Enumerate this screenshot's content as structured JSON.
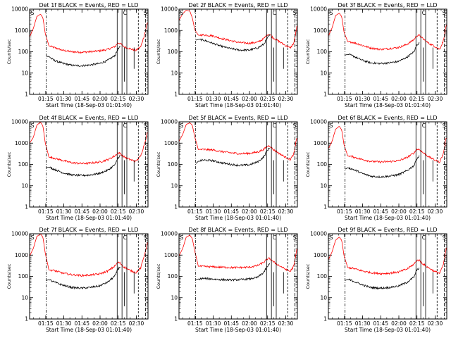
{
  "chart_data": {
    "type": "line",
    "ylabel": "Counts/sec",
    "xlabel": "Start Time (18-Sep-03 01:01:40)",
    "yscale": "log",
    "ylim": [
      1,
      10000
    ],
    "y_ticks": [
      "1",
      "10",
      "100",
      "1000",
      "10000"
    ],
    "x_ticks": [
      "01:15",
      "01:30",
      "01:45",
      "02:00",
      "02:15",
      "02:30"
    ],
    "x_tick_values_min": [
      13.33,
      28.33,
      43.33,
      58.33,
      73.33,
      88.33
    ],
    "xlim_min": [
      0,
      98
    ],
    "x_units": "minutes after 01:01:40",
    "legend_text": "BLACK = Events, RED = LLD",
    "series_colors": {
      "Events": "#000000",
      "LLD": "#ff0000"
    },
    "corner_markers": [
      "S",
      "C",
      "S"
    ],
    "panels": [
      {
        "title": "Det 1f BLACK = Events, RED = LLD",
        "lld": {
          "x": [
            0,
            3,
            6,
            9,
            11,
            13,
            16,
            20,
            28,
            35,
            43,
            50,
            58,
            65,
            71,
            73,
            75,
            78,
            83,
            88,
            92,
            95,
            98
          ],
          "y": [
            500,
            1200,
            4500,
            5800,
            4000,
            700,
            190,
            160,
            115,
            100,
            95,
            100,
            110,
            130,
            180,
            260,
            250,
            170,
            140,
            115,
            170,
            600,
            3000
          ]
        },
        "events": {
          "x": [
            14,
            16,
            20,
            28,
            35,
            43,
            50,
            58,
            65,
            71,
            73,
            75
          ],
          "y": [
            60,
            60,
            40,
            28,
            23,
            22,
            24,
            28,
            40,
            70,
            130,
            170
          ]
        }
      },
      {
        "title": "Det 2f BLACK = Events, RED = LLD",
        "lld": {
          "x": [
            0,
            3,
            6,
            9,
            11,
            13,
            16,
            20,
            28,
            35,
            43,
            50,
            58,
            65,
            70,
            73,
            75,
            78,
            83,
            88,
            92,
            95,
            98
          ],
          "y": [
            3000,
            6000,
            9000,
            8000,
            4000,
            1100,
            600,
            620,
            560,
            420,
            330,
            270,
            250,
            280,
            400,
            650,
            650,
            450,
            300,
            200,
            150,
            250,
            2000
          ]
        },
        "events": {
          "x": [
            14,
            16,
            20,
            28,
            35,
            43,
            50,
            58,
            65,
            70,
            73,
            75
          ],
          "y": [
            350,
            380,
            360,
            250,
            180,
            140,
            120,
            120,
            150,
            220,
            420,
            600
          ]
        }
      },
      {
        "title": "Det 3f BLACK = Events, RED = LLD",
        "lld": {
          "x": [
            0,
            3,
            6,
            9,
            11,
            13,
            16,
            20,
            28,
            35,
            43,
            50,
            58,
            65,
            71,
            73,
            75,
            78,
            83,
            88,
            92,
            95,
            98
          ],
          "y": [
            550,
            1300,
            5000,
            6500,
            4500,
            800,
            300,
            280,
            200,
            150,
            130,
            140,
            160,
            220,
            380,
            550,
            600,
            420,
            250,
            180,
            130,
            300,
            2500
          ]
        },
        "events": {
          "x": [
            14,
            16,
            20,
            28,
            35,
            43,
            50,
            58,
            65,
            71,
            73,
            75
          ],
          "y": [
            70,
            75,
            65,
            40,
            30,
            28,
            30,
            35,
            55,
            100,
            200,
            260
          ]
        }
      },
      {
        "title": "Det 4f BLACK = Events, RED = LLD",
        "lld": {
          "x": [
            0,
            3,
            6,
            9,
            11,
            13,
            16,
            20,
            28,
            35,
            43,
            50,
            58,
            65,
            71,
            73,
            75,
            78,
            83,
            88,
            92,
            95,
            98
          ],
          "y": [
            1000,
            1800,
            7000,
            9500,
            6500,
            1000,
            220,
            200,
            150,
            120,
            110,
            115,
            130,
            170,
            260,
            350,
            330,
            230,
            170,
            140,
            250,
            900,
            4000
          ]
        },
        "events": {
          "x": [
            14,
            16,
            20,
            28,
            35,
            43,
            50,
            58,
            65,
            71,
            73,
            75
          ],
          "y": [
            70,
            75,
            60,
            40,
            32,
            30,
            32,
            38,
            55,
            100,
            200,
            260
          ]
        }
      },
      {
        "title": "Det 5f BLACK = Events, RED = LLD",
        "lld": {
          "x": [
            0,
            3,
            6,
            9,
            11,
            13,
            16,
            20,
            28,
            35,
            43,
            50,
            58,
            65,
            70,
            73,
            75,
            78,
            83,
            88,
            92,
            95,
            98
          ],
          "y": [
            1200,
            2500,
            7500,
            9000,
            7000,
            2000,
            500,
            500,
            480,
            400,
            350,
            320,
            330,
            380,
            500,
            700,
            750,
            500,
            330,
            220,
            170,
            300,
            2500
          ]
        },
        "events": {
          "x": [
            14,
            16,
            20,
            28,
            35,
            43,
            50,
            58,
            65,
            70,
            73,
            75
          ],
          "y": [
            110,
            140,
            160,
            150,
            120,
            100,
            90,
            95,
            130,
            220,
            450,
            600
          ]
        }
      },
      {
        "title": "Det 6f BLACK = Events, RED = LLD",
        "lld": {
          "x": [
            0,
            3,
            6,
            9,
            11,
            13,
            16,
            20,
            28,
            35,
            43,
            50,
            58,
            65,
            71,
            73,
            75,
            78,
            83,
            88,
            92,
            95,
            98
          ],
          "y": [
            550,
            1200,
            4500,
            6200,
            4200,
            800,
            250,
            230,
            170,
            140,
            130,
            135,
            150,
            210,
            350,
            500,
            520,
            370,
            230,
            160,
            130,
            300,
            2500
          ]
        },
        "events": {
          "x": [
            14,
            16,
            20,
            28,
            35,
            43,
            50,
            58,
            65,
            71,
            73,
            75
          ],
          "y": [
            60,
            70,
            60,
            38,
            28,
            26,
            28,
            33,
            50,
            90,
            180,
            240
          ]
        }
      },
      {
        "title": "Det 7f BLACK = Events, RED = LLD",
        "lld": {
          "x": [
            0,
            3,
            6,
            9,
            11,
            13,
            16,
            20,
            28,
            35,
            43,
            50,
            58,
            65,
            71,
            73,
            75,
            78,
            83,
            88,
            92,
            95,
            98
          ],
          "y": [
            900,
            2000,
            7500,
            9800,
            7000,
            1200,
            200,
            190,
            140,
            120,
            110,
            115,
            130,
            180,
            320,
            450,
            420,
            280,
            190,
            150,
            250,
            1000,
            4500
          ]
        },
        "events": {
          "x": [
            14,
            16,
            20,
            28,
            35,
            43,
            50,
            58,
            65,
            71,
            73,
            75
          ],
          "y": [
            65,
            70,
            55,
            38,
            30,
            28,
            30,
            36,
            55,
            110,
            220,
            280
          ]
        }
      },
      {
        "title": "Det 8f BLACK = Events, RED = LLD",
        "lld": {
          "x": [
            0,
            3,
            6,
            9,
            11,
            13,
            16,
            20,
            28,
            35,
            43,
            50,
            58,
            65,
            70,
            73,
            75,
            78,
            83,
            88,
            92,
            95,
            98
          ],
          "y": [
            900,
            2000,
            7000,
            8500,
            6000,
            1600,
            300,
            290,
            280,
            270,
            260,
            260,
            270,
            320,
            450,
            650,
            700,
            480,
            320,
            220,
            170,
            300,
            2500
          ]
        },
        "events": {
          "x": [
            14,
            16,
            20,
            28,
            35,
            43,
            50,
            58,
            65,
            70,
            73,
            75
          ],
          "y": [
            70,
            75,
            80,
            75,
            70,
            68,
            70,
            75,
            90,
            150,
            280,
            380
          ]
        }
      },
      {
        "title": "Det 9f BLACK = Events, RED = LLD",
        "lld": {
          "x": [
            0,
            3,
            6,
            9,
            11,
            13,
            16,
            20,
            28,
            35,
            43,
            50,
            58,
            65,
            71,
            73,
            75,
            78,
            83,
            88,
            92,
            95,
            98
          ],
          "y": [
            600,
            1400,
            5000,
            7000,
            5000,
            900,
            260,
            240,
            180,
            150,
            135,
            140,
            160,
            220,
            380,
            550,
            580,
            400,
            250,
            170,
            140,
            320,
            2800
          ]
        },
        "events": {
          "x": [
            14,
            16,
            20,
            28,
            35,
            43,
            50,
            58,
            65,
            71,
            73,
            75
          ],
          "y": [
            65,
            72,
            62,
            40,
            30,
            28,
            30,
            35,
            52,
            95,
            190,
            250
          ]
        }
      }
    ]
  }
}
